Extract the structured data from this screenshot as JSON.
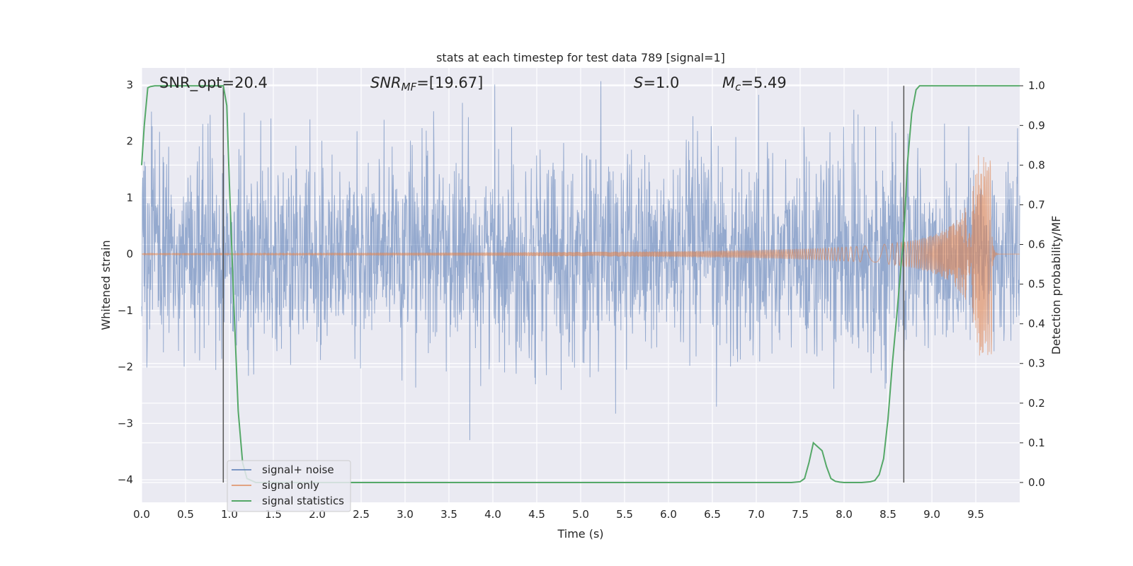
{
  "chart_data": {
    "type": "line",
    "title": "stats at each timestep for test data 789 [signal=1]",
    "xlabel": "Time (s)",
    "ylabel": "Whitened strain",
    "y2label": "Detection probability/MF",
    "xlim": [
      0.0,
      10.0
    ],
    "ylim": [
      -4.4,
      3.3
    ],
    "y2lim": [
      -0.05,
      1.045
    ],
    "x_ticks": [
      "0.0",
      "0.5",
      "1.0",
      "1.5",
      "2.0",
      "2.5",
      "3.0",
      "3.5",
      "4.0",
      "4.5",
      "5.0",
      "5.5",
      "6.0",
      "6.5",
      "7.0",
      "7.5",
      "8.0",
      "8.5",
      "9.0",
      "9.5"
    ],
    "y_ticks": [
      "3",
      "2",
      "1",
      "0",
      "−1",
      "−2",
      "−3",
      "−4"
    ],
    "y2_ticks": [
      "1.0",
      "0.9",
      "0.8",
      "0.7",
      "0.6",
      "0.5",
      "0.4",
      "0.3",
      "0.2",
      "0.1",
      "0.0"
    ],
    "grid": true,
    "legend_position": "lower-left",
    "annotations": {
      "snr_opt": "SNR_opt=20.4",
      "snr_mf_sym": "SNR",
      "snr_mf_sub": "MF",
      "snr_mf_val": "=[19.67]",
      "s_sym": "S",
      "s_val": "=1.0",
      "mc_sym": "M",
      "mc_sub": "c",
      "mc_val": "=5.49"
    },
    "vertical_markers": [
      0.93,
      8.68
    ],
    "series": [
      {
        "name": "signal+ noise",
        "color": "#4c72b0",
        "kind": "noise",
        "sigma": 0.9
      },
      {
        "name": "signal only",
        "color": "#dd8452",
        "kind": "chirp",
        "t_merge": 9.68,
        "peak_amplitude": 1.8,
        "start_amplitude": 0.02
      },
      {
        "name": "signal statistics",
        "color": "#55a868",
        "kind": "stat",
        "x": [
          0.0,
          0.03,
          0.07,
          0.1,
          0.15,
          0.2,
          0.3,
          0.4,
          0.5,
          0.6,
          0.7,
          0.8,
          0.9,
          0.93,
          0.97,
          1.0,
          1.05,
          1.1,
          1.15,
          1.2,
          1.3,
          2.0,
          3.0,
          4.0,
          5.0,
          6.0,
          7.0,
          7.4,
          7.5,
          7.55,
          7.6,
          7.65,
          7.7,
          7.75,
          7.8,
          7.85,
          7.9,
          7.95,
          8.0,
          8.1,
          8.2,
          8.3,
          8.35,
          8.4,
          8.45,
          8.5,
          8.55,
          8.6,
          8.65,
          8.68,
          8.72,
          8.77,
          8.82,
          8.86,
          8.9,
          9.0,
          9.5,
          10.0
        ],
        "y": [
          0.8,
          0.9,
          0.995,
          0.998,
          1.0,
          1.0,
          1.0,
          1.0,
          1.0,
          1.0,
          1.0,
          1.0,
          1.0,
          1.0,
          0.95,
          0.75,
          0.45,
          0.18,
          0.05,
          0.01,
          0.0,
          0.0,
          0.0,
          0.0,
          0.0,
          0.0,
          0.0,
          0.0,
          0.002,
          0.01,
          0.05,
          0.1,
          0.09,
          0.08,
          0.04,
          0.01,
          0.003,
          0.001,
          0.0,
          0.0,
          0.0,
          0.002,
          0.005,
          0.02,
          0.06,
          0.16,
          0.3,
          0.42,
          0.55,
          0.62,
          0.8,
          0.93,
          0.99,
          1.0,
          1.0,
          1.0,
          1.0,
          1.0
        ]
      }
    ]
  }
}
